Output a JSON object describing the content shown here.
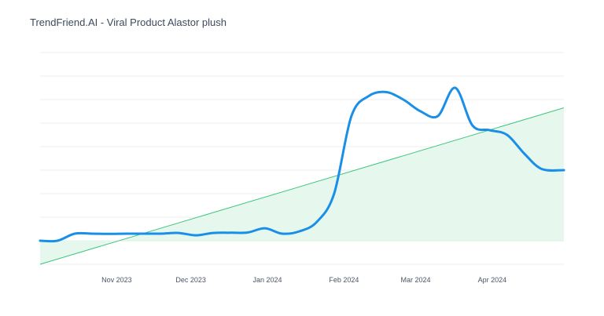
{
  "chart_data": {
    "type": "line",
    "title": "TrendFriend.AI - Viral Product Alastor plush",
    "xlabel": "",
    "ylabel": "",
    "x_range": [
      "2023-10-01",
      "2024-04-30"
    ],
    "y_range": [
      0,
      90
    ],
    "grid": true,
    "y_grid_values": [
      0,
      10,
      20,
      30,
      40,
      50,
      60,
      70,
      80,
      90
    ],
    "x_ticks": [
      {
        "label": "Nov 2023",
        "date": "2023-11-01"
      },
      {
        "label": "Dec 2023",
        "date": "2023-12-01"
      },
      {
        "label": "Jan 2024",
        "date": "2024-01-01"
      },
      {
        "label": "Feb 2024",
        "date": "2024-02-01"
      },
      {
        "label": "Mar 2024",
        "date": "2024-03-01"
      },
      {
        "label": "Apr 2024",
        "date": "2024-04-01"
      }
    ],
    "series": [
      {
        "type": "line",
        "color": "#1a8fe8",
        "points": [
          [
            "2023-10-01",
            10
          ],
          [
            "2023-10-08",
            10
          ],
          [
            "2023-10-15",
            13
          ],
          [
            "2023-10-22",
            13
          ],
          [
            "2023-10-29",
            12.9
          ],
          [
            "2023-11-05",
            13
          ],
          [
            "2023-11-12",
            13
          ],
          [
            "2023-11-19",
            13
          ],
          [
            "2023-11-26",
            13.3
          ],
          [
            "2023-12-03",
            12.3
          ],
          [
            "2023-12-10",
            13.3
          ],
          [
            "2023-12-17",
            13.4
          ],
          [
            "2023-12-24",
            13.5
          ],
          [
            "2023-12-31",
            15.3
          ],
          [
            "2024-01-07",
            13
          ],
          [
            "2024-01-14",
            14
          ],
          [
            "2024-01-21",
            18
          ],
          [
            "2024-01-28",
            30
          ],
          [
            "2024-02-04",
            63
          ],
          [
            "2024-02-11",
            71.5
          ],
          [
            "2024-02-18",
            73.2
          ],
          [
            "2024-02-25",
            70
          ],
          [
            "2024-03-03",
            65
          ],
          [
            "2024-03-10",
            63
          ],
          [
            "2024-03-17",
            75
          ],
          [
            "2024-03-24",
            59
          ],
          [
            "2024-03-31",
            57
          ],
          [
            "2024-04-07",
            55
          ],
          [
            "2024-04-14",
            47
          ],
          [
            "2024-04-21",
            40.5
          ],
          [
            "2024-04-30",
            40
          ]
        ]
      },
      {
        "type": "trend",
        "color": "#3ec77b",
        "fill": "#e6f8ee",
        "points": [
          [
            "2023-10-01",
            0
          ],
          [
            "2024-04-30",
            66.5
          ]
        ]
      }
    ]
  }
}
